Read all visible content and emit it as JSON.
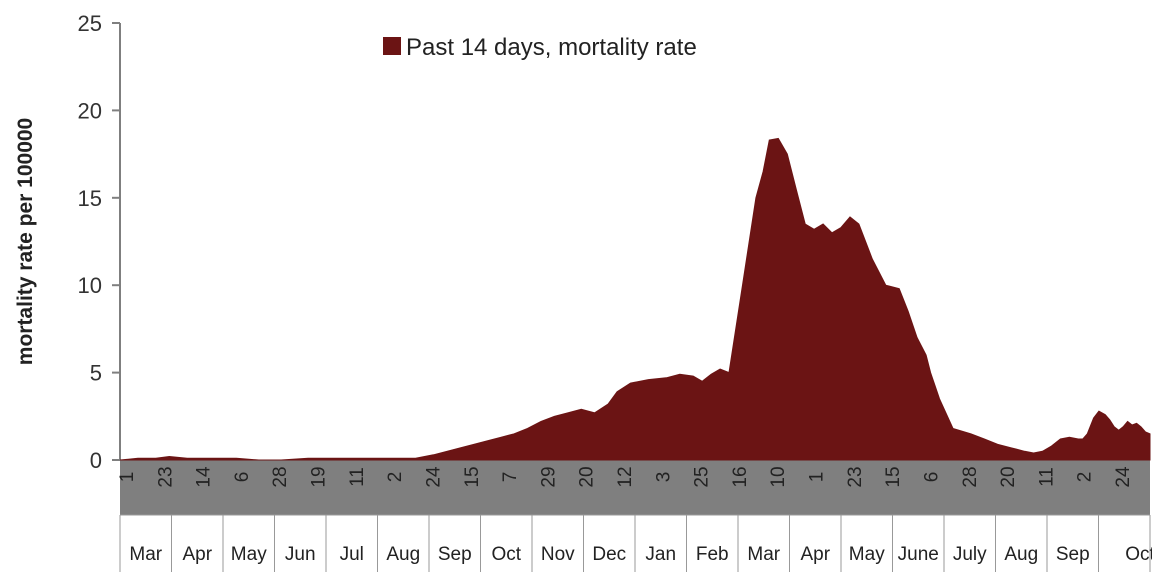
{
  "chart_data": {
    "type": "area",
    "title": "",
    "xlabel": "",
    "ylabel": "mortality rate per 100000",
    "ylim": [
      0,
      25
    ],
    "yticks": [
      0,
      5,
      10,
      15,
      20,
      25
    ],
    "legend": {
      "position": "top-center",
      "label": "Past 14 days, mortality rate"
    },
    "colors": {
      "series": "#6b1414",
      "band": "#7f7f7f",
      "axis": "#7f7f7f"
    },
    "series": [
      {
        "name": "Past 14 days, mortality rate",
        "x": [
          0,
          20,
          40,
          55,
          75,
          100,
          130,
          155,
          180,
          210,
          230,
          255,
          275,
          300,
          330,
          350,
          365,
          380,
          395,
          410,
          425,
          440,
          455,
          470,
          485,
          500,
          515,
          530,
          545,
          555,
          570,
          590,
          610,
          625,
          640,
          650,
          660,
          670,
          680,
          695,
          710,
          718,
          725,
          735,
          745,
          755,
          765,
          775,
          785,
          795,
          805,
          815,
          825,
          840,
          855,
          870,
          880,
          890,
          900,
          905,
          915,
          930,
          950,
          965,
          980,
          995,
          1010,
          1020,
          1030,
          1040,
          1050,
          1060,
          1070,
          1075,
          1080,
          1087,
          1093,
          1100,
          1105,
          1110,
          1115,
          1120,
          1125,
          1130,
          1135,
          1140,
          1145,
          1150
        ],
        "values": [
          0,
          0.1,
          0.1,
          0.2,
          0.1,
          0.1,
          0.1,
          0,
          0,
          0.1,
          0.1,
          0.1,
          0.1,
          0.1,
          0.1,
          0.3,
          0.5,
          0.7,
          0.9,
          1.1,
          1.3,
          1.5,
          1.8,
          2.2,
          2.5,
          2.7,
          2.9,
          2.7,
          3.2,
          3.9,
          4.4,
          4.6,
          4.7,
          4.9,
          4.8,
          4.5,
          4.9,
          5.2,
          5.0,
          10,
          15,
          16.5,
          18.3,
          18.4,
          17.5,
          15.5,
          13.5,
          13.2,
          13.5,
          13.0,
          13.3,
          13.9,
          13.5,
          11.5,
          10.0,
          9.8,
          8.5,
          7.0,
          6.0,
          5.0,
          3.5,
          1.8,
          1.5,
          1.2,
          0.9,
          0.7,
          0.5,
          0.4,
          0.5,
          0.8,
          1.2,
          1.3,
          1.2,
          1.2,
          1.5,
          2.4,
          2.8,
          2.6,
          2.3,
          1.9,
          1.7,
          1.9,
          2.2,
          2.0,
          2.1,
          1.9,
          1.6,
          1.5
        ]
      }
    ],
    "day_ticks": [
      "1",
      "23",
      "14",
      "6",
      "28",
      "19",
      "11",
      "2",
      "24",
      "15",
      "7",
      "29",
      "20",
      "12",
      "3",
      "25",
      "16",
      "10",
      "1",
      "23",
      "15",
      "6",
      "28",
      "20",
      "11",
      "2",
      "24"
    ],
    "months": [
      "Mar",
      "Apr",
      "May",
      "Jun",
      "Jul",
      "Aug",
      "Sep",
      "Oct",
      "Nov",
      "Dec",
      "Jan",
      "Feb",
      "Mar",
      "Apr",
      "May",
      "June",
      "July",
      "Aug",
      "Sep",
      "Oct"
    ]
  }
}
